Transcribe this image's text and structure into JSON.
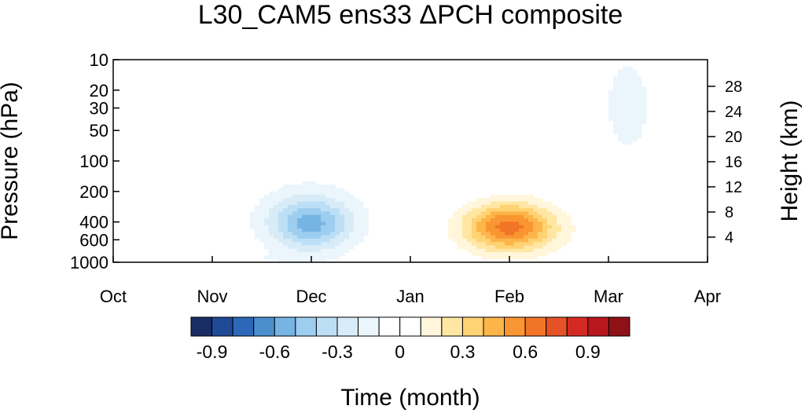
{
  "chart_data": {
    "type": "heatmap",
    "title": "L30_CAM5 ens33 ΔPCH composite",
    "xlabel": "Time (month)",
    "ylabel": "Pressure (hPa)",
    "ylabel_right": "Height (km)",
    "x_ticks": [
      "Oct",
      "Nov",
      "Dec",
      "Jan",
      "Feb",
      "Mar",
      "Apr"
    ],
    "y_ticks": [
      10,
      20,
      30,
      50,
      100,
      200,
      400,
      600,
      1000
    ],
    "y_scale": "log",
    "ylim": [
      1000,
      10
    ],
    "y_right_ticks": [
      4,
      8,
      12,
      16,
      20,
      24,
      28
    ],
    "colorbar": {
      "levels": [
        -1.0,
        -0.9,
        -0.8,
        -0.7,
        -0.6,
        -0.5,
        -0.4,
        -0.3,
        -0.2,
        -0.1,
        0,
        0.1,
        0.2,
        0.3,
        0.4,
        0.5,
        0.6,
        0.7,
        0.8,
        0.9,
        1.0
      ],
      "labels": [
        "-0.9",
        "-0.6",
        "-0.3",
        "0",
        "0.3",
        "0.6",
        "0.9"
      ],
      "label_levels": [
        -0.9,
        -0.6,
        -0.3,
        0,
        0.3,
        0.6,
        0.9
      ],
      "colors": [
        "#1a2c64",
        "#1f4a96",
        "#2c67b8",
        "#4b8fcf",
        "#76b4e3",
        "#9dcdef",
        "#bcdff5",
        "#d8ecf8",
        "#ebf5fc",
        "#ffffff",
        "#ffffff",
        "#fff6db",
        "#ffe7a3",
        "#ffd273",
        "#fdb54a",
        "#f99632",
        "#f27426",
        "#e55226",
        "#d42a24",
        "#b8171d",
        "#8e1216"
      ]
    },
    "features": [
      {
        "label": "negative",
        "center_month": 2.0,
        "center_hPa": 420,
        "peak": -0.5
      },
      {
        "label": "positive",
        "center_month": 4.0,
        "center_hPa": 450,
        "peak": 0.65
      },
      {
        "label": "negative",
        "center_month": 5.2,
        "center_hPa": 28,
        "peak": -0.15
      },
      {
        "label": "positive",
        "center_month": 0.6,
        "center_hPa": 50,
        "peak": 0.08
      },
      {
        "label": "positive",
        "center_month": 5.9,
        "center_hPa": 600,
        "peak": 0.08
      }
    ]
  }
}
